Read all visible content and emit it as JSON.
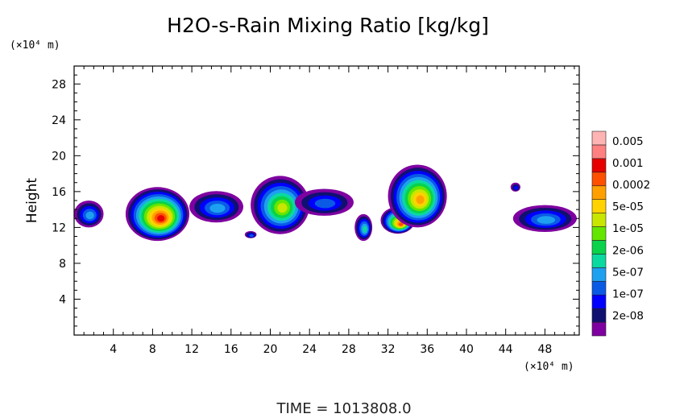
{
  "chart_data": {
    "type": "heatmap",
    "title": "H2O-s-Rain Mixing Ratio [kg/kg]",
    "ylabel": "Height",
    "xunit": "(×10⁴ m)",
    "yunit": "(×10⁴ m)",
    "xlim": [
      0,
      51.5
    ],
    "ylim": [
      0,
      30
    ],
    "xticks": [
      4,
      8,
      12,
      16,
      20,
      24,
      28,
      32,
      36,
      40,
      44,
      48
    ],
    "yticks": [
      4,
      8,
      12,
      16,
      20,
      24,
      28
    ],
    "xtick_labels": [
      "4",
      "8",
      "12",
      "16",
      "20",
      "24",
      "28",
      "32",
      "36",
      "40",
      "44",
      "48"
    ],
    "ytick_labels": [
      "4",
      "8",
      "12",
      "16",
      "20",
      "24",
      "28"
    ],
    "legend": {
      "colors": [
        "#7f00a0",
        "#101070",
        "#0000ff",
        "#0a5ae6",
        "#1ea0f0",
        "#0ad9a0",
        "#0ad24a",
        "#64e600",
        "#c8e600",
        "#ffd200",
        "#ffa000",
        "#ff5000",
        "#e60000",
        "#ff8080",
        "#ffb4b4"
      ],
      "labels": [
        "2e-08",
        "1e-07",
        "5e-07",
        "2e-06",
        "1e-05",
        "5e-05",
        "0.0002",
        "0.001",
        "0.005"
      ]
    },
    "cells": [
      {
        "name": "left-edge",
        "x": 1.5,
        "y": 13.5,
        "w": 3.0,
        "h": 3.0,
        "peak": 4
      },
      {
        "name": "cell-8",
        "x": 8.5,
        "y": 13.5,
        "w": 6.5,
        "h": 6.0,
        "peak": 12
      },
      {
        "name": "cell-14",
        "x": 14.5,
        "y": 14.3,
        "w": 5.5,
        "h": 3.5,
        "peak": 4
      },
      {
        "name": "cell-18",
        "x": 18.0,
        "y": 11.2,
        "w": 1.2,
        "h": 0.8,
        "peak": 3
      },
      {
        "name": "cell-21",
        "x": 21.0,
        "y": 14.5,
        "w": 6.0,
        "h": 6.5,
        "peak": 8
      },
      {
        "name": "cell-25",
        "x": 25.5,
        "y": 14.8,
        "w": 6.0,
        "h": 3.0,
        "peak": 3
      },
      {
        "name": "cell-29",
        "x": 29.5,
        "y": 12.0,
        "w": 1.8,
        "h": 3.0,
        "peak": 5
      },
      {
        "name": "cell-33",
        "x": 33.0,
        "y": 12.8,
        "w": 3.5,
        "h": 3.0,
        "peak": 11
      },
      {
        "name": "cell-35",
        "x": 35.0,
        "y": 15.5,
        "w": 6.0,
        "h": 7.0,
        "peak": 10
      },
      {
        "name": "cell-45",
        "x": 45.0,
        "y": 16.5,
        "w": 1.0,
        "h": 1.0,
        "peak": 2
      },
      {
        "name": "cell-48",
        "x": 48.0,
        "y": 13.0,
        "w": 6.5,
        "h": 3.0,
        "peak": 4
      }
    ]
  },
  "footer": {
    "time": "TIME = 1013808.0"
  }
}
